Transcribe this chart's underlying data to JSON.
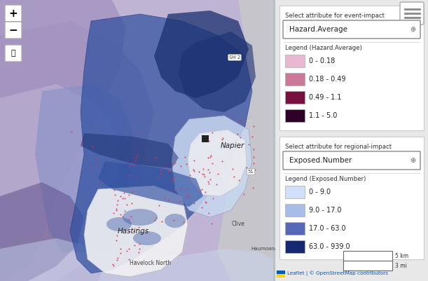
{
  "fig_width": 6.11,
  "fig_height": 4.01,
  "dpi": 100,
  "map_bg": "#b8c0cc",
  "map_colors": {
    "light_purple": "#c0b4d4",
    "medium_purple": "#a090c0",
    "dark_purple": "#7060a0",
    "deeper_purple": "#5a4888",
    "light_blue": "#c8d8f0",
    "medium_blue": "#8090c8",
    "dark_blue": "#3050a0",
    "very_dark_blue": "#1a3070",
    "grey_area": "#d0d0d8",
    "white_area": "#f2f2f4",
    "coast_grey": "#c8c8cc"
  },
  "hazard_legend_colors": [
    "#e8b8d0",
    "#cc7898",
    "#7a1040",
    "#2e0028"
  ],
  "hazard_legend_labels": [
    "0 - 0.18",
    "0.18 - 0.49",
    "0.49 - 1.1",
    "1.1 - 5.0"
  ],
  "exposed_legend_colors": [
    "#d0e0f8",
    "#a8bce8",
    "#5868b8",
    "#162870"
  ],
  "exposed_legend_labels": [
    "0 - 9.0",
    "9.0 - 17.0",
    "17.0 - 63.0",
    "63.0 - 939.0"
  ],
  "event_label": "Select attribute for event-impact",
  "event_dropdown": "Hazard.Average",
  "hazard_legend_title": "Legend (Hazard.Average)",
  "regional_label": "Select attribute for regional-impact",
  "regional_dropdown": "Exposed.Number",
  "exposed_legend_title": "Legend (Exposed.Number)",
  "scale_5km": "5 km",
  "scale_3mi": "3 mi",
  "attribution": "Leaflet | © OpenStreetMap contributors"
}
